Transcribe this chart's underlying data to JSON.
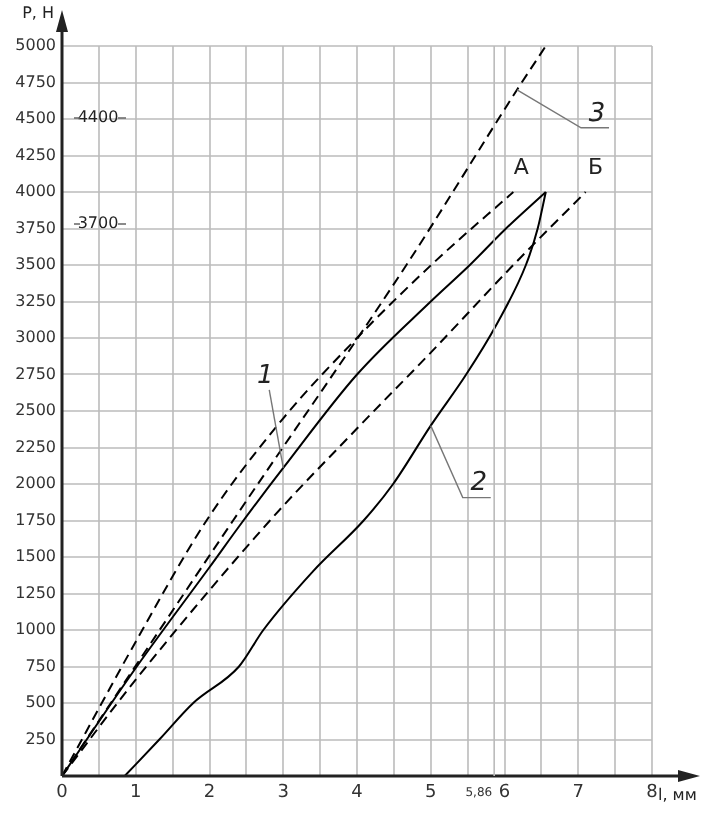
{
  "chart_data": {
    "type": "line",
    "xlabel": "l, мм",
    "ylabel": "P, Н",
    "xlim": [
      0,
      8
    ],
    "ylim": [
      0,
      5000
    ],
    "xticks": [
      0,
      {
        "value": 0.5,
        "label": null
      },
      1,
      {
        "value": 1.5,
        "label": null
      },
      2,
      {
        "value": 2.5,
        "label": null
      },
      3,
      {
        "value": 3.5,
        "label": null
      },
      4,
      {
        "value": 4.5,
        "label": null
      },
      5,
      {
        "value": 5.5,
        "label": null
      },
      6,
      {
        "value": 6.5,
        "label": null
      },
      7,
      {
        "value": 7.5,
        "label": null
      },
      8
    ],
    "yticks": [
      {
        "value": 0,
        "label": null
      },
      250,
      500,
      750,
      1000,
      1250,
      1500,
      1750,
      2000,
      2250,
      2500,
      2750,
      3000,
      3250,
      3500,
      3750,
      4000,
      4250,
      4500,
      4750,
      5000
    ],
    "grid": true,
    "legend": false,
    "marker": "none",
    "ref_lines": [
      {
        "axis": "x",
        "value": 5.86,
        "label": "5,86",
        "color": "#bbbbbb"
      }
    ],
    "series": [
      {
        "color": "#000000",
        "line_style": "solid",
        "x": [
          0,
          1,
          2,
          2.46,
          3,
          4,
          5,
          5.53,
          6,
          6.56
        ],
        "values": [
          0,
          740,
          1430,
          1750,
          2110,
          2750,
          3250,
          3500,
          3740,
          4000
        ]
      },
      {
        "color": "#000000",
        "line_style": "solid",
        "x": [
          0.85,
          1.32,
          1.78,
          2.4,
          2.73,
          3.4,
          4.09,
          4.49,
          5.0,
          5.48,
          5.9,
          6.29,
          6.45,
          6.56
        ],
        "values": [
          0,
          250,
          500,
          750,
          1000,
          1400,
          1750,
          2000,
          2400,
          2750,
          3100,
          3500,
          3750,
          4000
        ]
      },
      {
        "color": "#000000",
        "line_style": "dashed",
        "x": [
          0,
          2.32,
          4.67,
          6.17,
          6.56
        ],
        "values": [
          0,
          1750,
          3500,
          4700,
          5000
        ]
      },
      {
        "color": "#000000",
        "line_style": "dashed",
        "x": [
          0,
          1,
          1.96,
          3,
          4,
          5.07,
          6.12
        ],
        "values": [
          0,
          920,
          1750,
          2450,
          3000,
          3530,
          4000
        ]
      },
      {
        "color": "#000000",
        "line_style": "dashed",
        "x": [
          0,
          1,
          2.82,
          4,
          5,
          6.12,
          7.1
        ],
        "values": [
          0,
          660,
          1750,
          2380,
          2900,
          3500,
          4000
        ]
      }
    ],
    "annotations": [
      "4400",
      "3700",
      {
        "text": "1",
        "x": 3,
        "y": 2110
      },
      {
        "text": "2",
        "x": 5.0,
        "y": 2400
      },
      {
        "text": "3",
        "x": 6.17,
        "y": 4700
      },
      {
        "text": "А",
        "x": 6.12,
        "y": 4000
      },
      {
        "text": "Б",
        "x": 7.1,
        "y": 4000
      }
    ]
  }
}
